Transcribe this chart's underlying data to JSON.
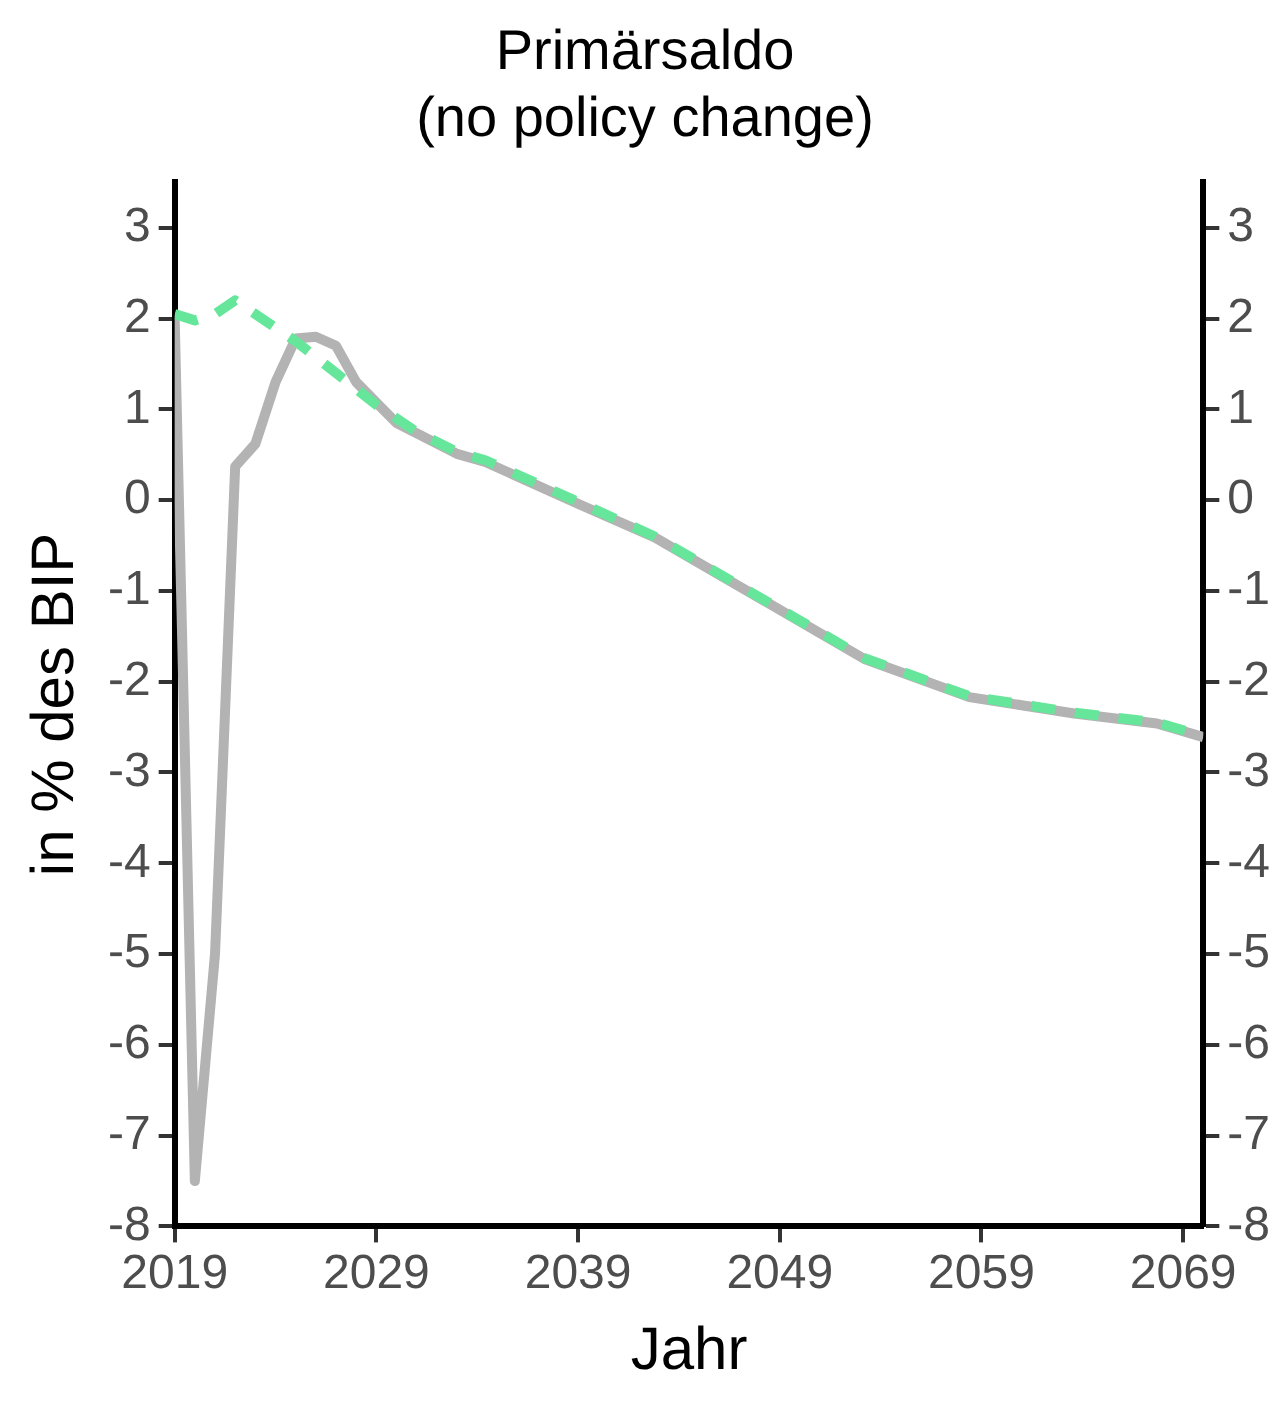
{
  "chart_data": {
    "type": "line",
    "title": "Primärsaldo\n(no policy change)",
    "xlabel": "Jahr",
    "ylabel": "in % des BIP",
    "xlim": [
      2019,
      2070
    ],
    "xticks": [
      2019,
      2029,
      2039,
      2049,
      2059,
      2069
    ],
    "ylim": [
      -8,
      3.5
    ],
    "yticks": [
      -8,
      -7,
      -6,
      -5,
      -4,
      -3,
      -2,
      -1,
      0,
      1,
      2,
      3
    ],
    "y2lim": [
      -8,
      3.5
    ],
    "y2ticks": [
      -8,
      -7,
      -6,
      -5,
      -4,
      -3,
      -2,
      -1,
      0,
      1,
      2,
      3
    ],
    "grid": false,
    "legend": false,
    "marker": "none",
    "series": [
      {
        "color": "#b3b3b3",
        "line_style": "solid",
        "x": [
          2019,
          2020,
          2021,
          2022,
          2023,
          2024,
          2025,
          2026,
          2027,
          2028,
          2030,
          2033,
          2034.4,
          2039.3,
          2042.8,
          2048,
          2053.2,
          2058.4,
          2063.6,
          2067.7,
          2070
        ],
        "values": [
          2.0,
          -7.5,
          -5.0,
          0.37,
          0.62,
          1.3,
          1.78,
          1.8,
          1.7,
          1.3,
          0.85,
          0.51,
          0.42,
          -0.07,
          -0.41,
          -1.08,
          -1.75,
          -2.17,
          -2.35,
          -2.46,
          -2.61
        ]
      },
      {
        "color": "#66e69a",
        "line_style": "dashed",
        "x": [
          2019,
          2020,
          2021,
          2022,
          2023,
          2025,
          2027,
          2029,
          2031,
          2033,
          2034.4,
          2039.3,
          2042.8,
          2048,
          2053.2,
          2058.4,
          2063.6,
          2067.7,
          2070
        ],
        "values": [
          2.05,
          1.98,
          2.05,
          2.2,
          2.05,
          1.75,
          1.4,
          1.05,
          0.75,
          0.53,
          0.44,
          -0.05,
          -0.4,
          -1.07,
          -1.74,
          -2.16,
          -2.34,
          -2.45,
          -2.6
        ]
      }
    ]
  }
}
